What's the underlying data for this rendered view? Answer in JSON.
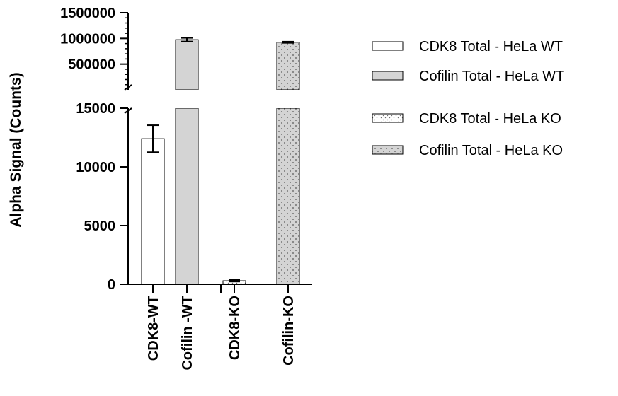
{
  "chart_data": {
    "type": "bar",
    "ylabel": "Alpha Signal (Counts)",
    "categories": [
      "CDK8-WT",
      "Cofilin -WT",
      "CDK8-KO",
      "Cofilin-KO"
    ],
    "broken_axis": {
      "lower_range": [
        0,
        15000
      ],
      "lower_ticks": [
        "0",
        "5000",
        "10000",
        "15000"
      ],
      "upper_range": [
        0,
        1500000
      ],
      "upper_ticks": [
        "500000",
        "1000000",
        "1500000"
      ]
    },
    "bars": [
      {
        "category": "CDK8-WT",
        "series": "CDK8 Total - HeLa WT",
        "value": 12400,
        "error": 1150
      },
      {
        "category": "Cofilin -WT",
        "series": "Cofilin Total - HeLa WT",
        "value": 975000,
        "error": 35000
      },
      {
        "category": "CDK8-KO",
        "series": "CDK8 Total - HeLa KO",
        "value": 300,
        "error": 70
      },
      {
        "category": "Cofilin-KO",
        "series": "Cofilin Total - HeLa KO",
        "value": 925000,
        "error": 12000
      }
    ],
    "series": [
      {
        "name": "CDK8 Total - HeLa WT",
        "fill": "white"
      },
      {
        "name": "Cofilin Total - HeLa WT",
        "fill": "gray"
      },
      {
        "name": "CDK8 Total - HeLa KO",
        "fill": "sparse-dots"
      },
      {
        "name": "Cofilin Total - HeLa KO",
        "fill": "gray-dots"
      }
    ],
    "legend_position": "right",
    "colors": {
      "gray": "#d4d4d4",
      "dots": "#707070",
      "stroke": "#000000"
    }
  }
}
